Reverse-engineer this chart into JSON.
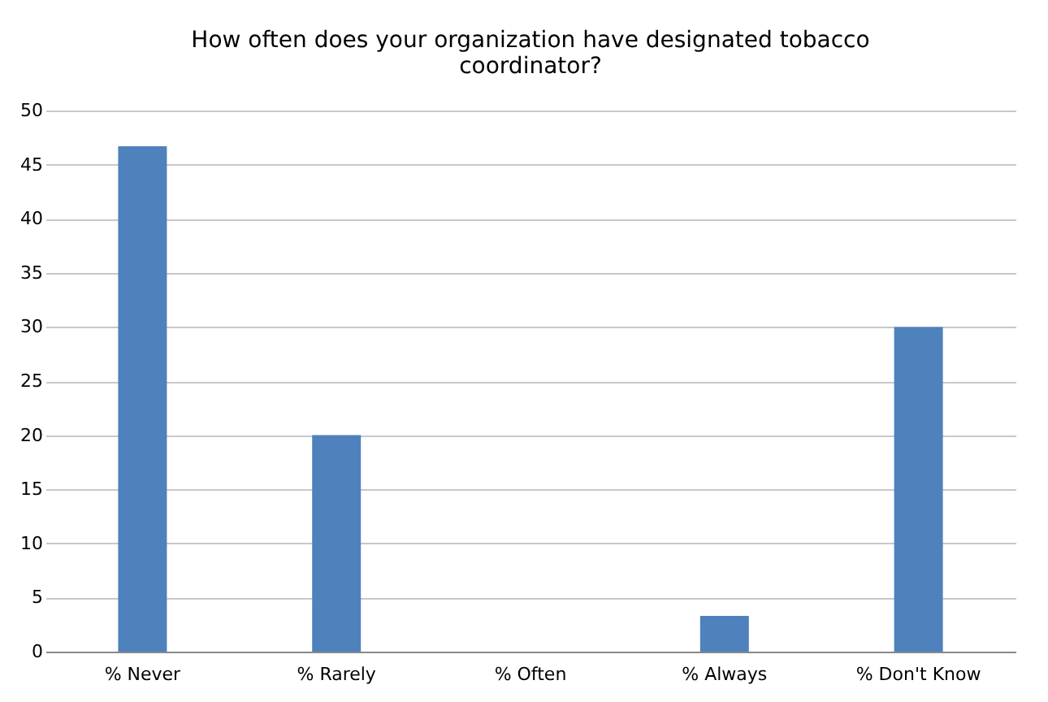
{
  "chart_data": {
    "type": "bar",
    "title": "How often does your organization have designated tobacco coordinator?",
    "categories": [
      "% Never",
      "% Rarely",
      "% Often",
      "% Always",
      "% Don't Know"
    ],
    "values": [
      46.7,
      20,
      0,
      3.3,
      30
    ],
    "color": "#4f81bd",
    "ylim": [
      0,
      50
    ],
    "yticks": [
      0,
      5,
      10,
      15,
      20,
      25,
      30,
      35,
      40,
      45,
      50
    ],
    "grid": "y"
  }
}
